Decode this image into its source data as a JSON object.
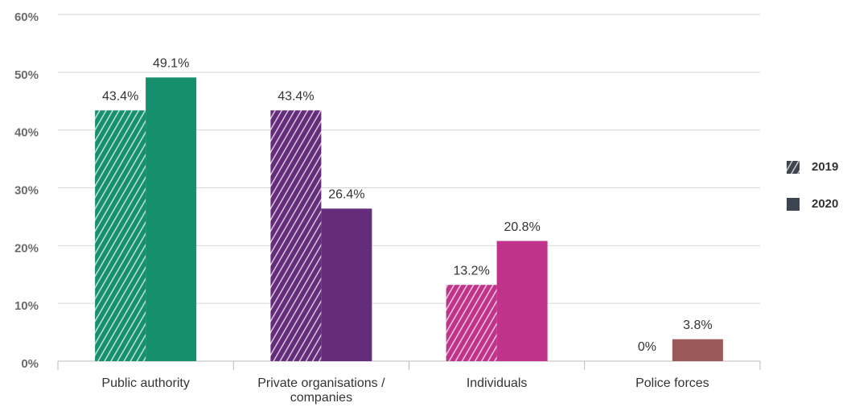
{
  "chart_data": {
    "type": "bar",
    "categories": [
      "Public authority",
      "Private organisations / companies",
      "Individuals",
      "Police forces"
    ],
    "category_colors": [
      "#168f6f",
      "#642c7a",
      "#c0338a",
      "#9a5a5a"
    ],
    "series": [
      {
        "name": "2019",
        "color": "#3d4650",
        "pattern": "hatch",
        "values": [
          43.4,
          43.4,
          13.2,
          0
        ],
        "value_labels": [
          "43.4%",
          "43.4%",
          "13.2%",
          "0%"
        ]
      },
      {
        "name": "2020",
        "color": "#3d4650",
        "pattern": "solid",
        "values": [
          49.1,
          26.4,
          20.8,
          3.8
        ],
        "value_labels": [
          "49.1%",
          "26.4%",
          "20.8%",
          "3.8%"
        ]
      }
    ],
    "ylim": [
      0,
      60
    ],
    "yticks": [
      {
        "value": 0,
        "label": "0%"
      },
      {
        "value": 10,
        "label": "10%"
      },
      {
        "value": 20,
        "label": "20%"
      },
      {
        "value": 30,
        "label": "30%"
      },
      {
        "value": 40,
        "label": "40%"
      },
      {
        "value": 50,
        "label": "50%"
      },
      {
        "value": 60,
        "label": "60%"
      }
    ],
    "grid": true,
    "legend": "right"
  }
}
